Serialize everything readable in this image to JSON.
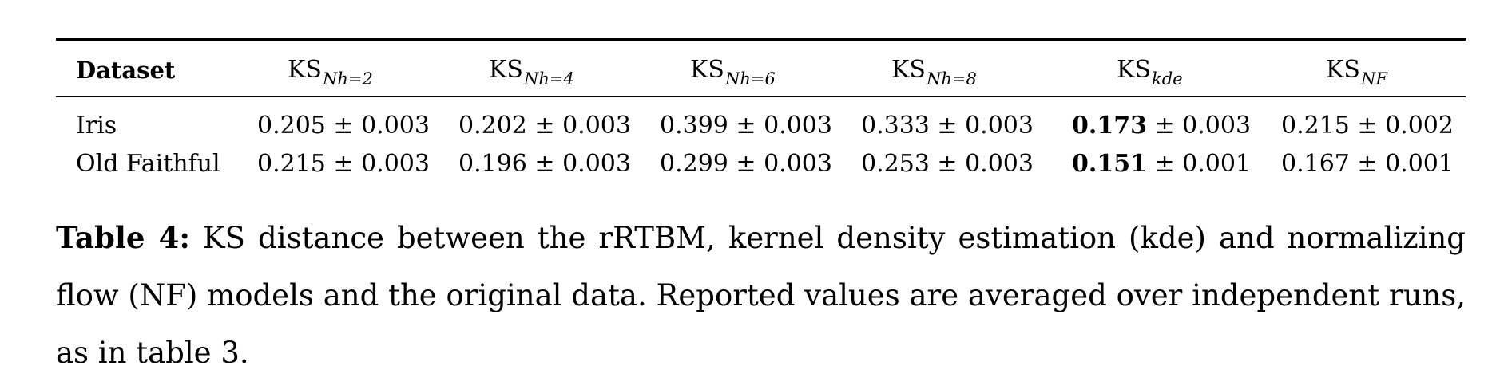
{
  "table": {
    "header_first": "Dataset",
    "columns": [
      {
        "main": "KS",
        "sub": "Nh=2"
      },
      {
        "main": "KS",
        "sub": "Nh=4"
      },
      {
        "main": "KS",
        "sub": "Nh=6"
      },
      {
        "main": "KS",
        "sub": "Nh=8"
      },
      {
        "main": "KS",
        "sub": "kde"
      },
      {
        "main": "KS",
        "sub": "NF"
      }
    ],
    "rows": [
      {
        "dataset": "Iris",
        "cells": [
          {
            "value": "0.205",
            "err": " ± 0.003"
          },
          {
            "value": "0.202",
            "err": " ± 0.003"
          },
          {
            "value": "0.399",
            "err": " ± 0.003"
          },
          {
            "value": "0.333",
            "err": " ± 0.003"
          },
          {
            "value": "0.173",
            "err": " ± 0.003"
          },
          {
            "value": "0.215",
            "err": " ± 0.002"
          }
        ]
      },
      {
        "dataset": "Old Faithful",
        "cells": [
          {
            "value": "0.215",
            "err": " ± 0.003"
          },
          {
            "value": "0.196",
            "err": " ± 0.003"
          },
          {
            "value": "0.299",
            "err": " ± 0.003"
          },
          {
            "value": "0.253",
            "err": " ± 0.003"
          },
          {
            "value": "0.151",
            "err": " ± 0.001"
          },
          {
            "value": "0.167",
            "err": " ± 0.001"
          }
        ]
      }
    ]
  },
  "caption": {
    "label": "Table 4:",
    "text": " KS distance between the rRTBM, kernel density estimation (kde) and normalizing flow (NF) models and the original data. Reported values are averaged over independent runs, as in table 3."
  }
}
